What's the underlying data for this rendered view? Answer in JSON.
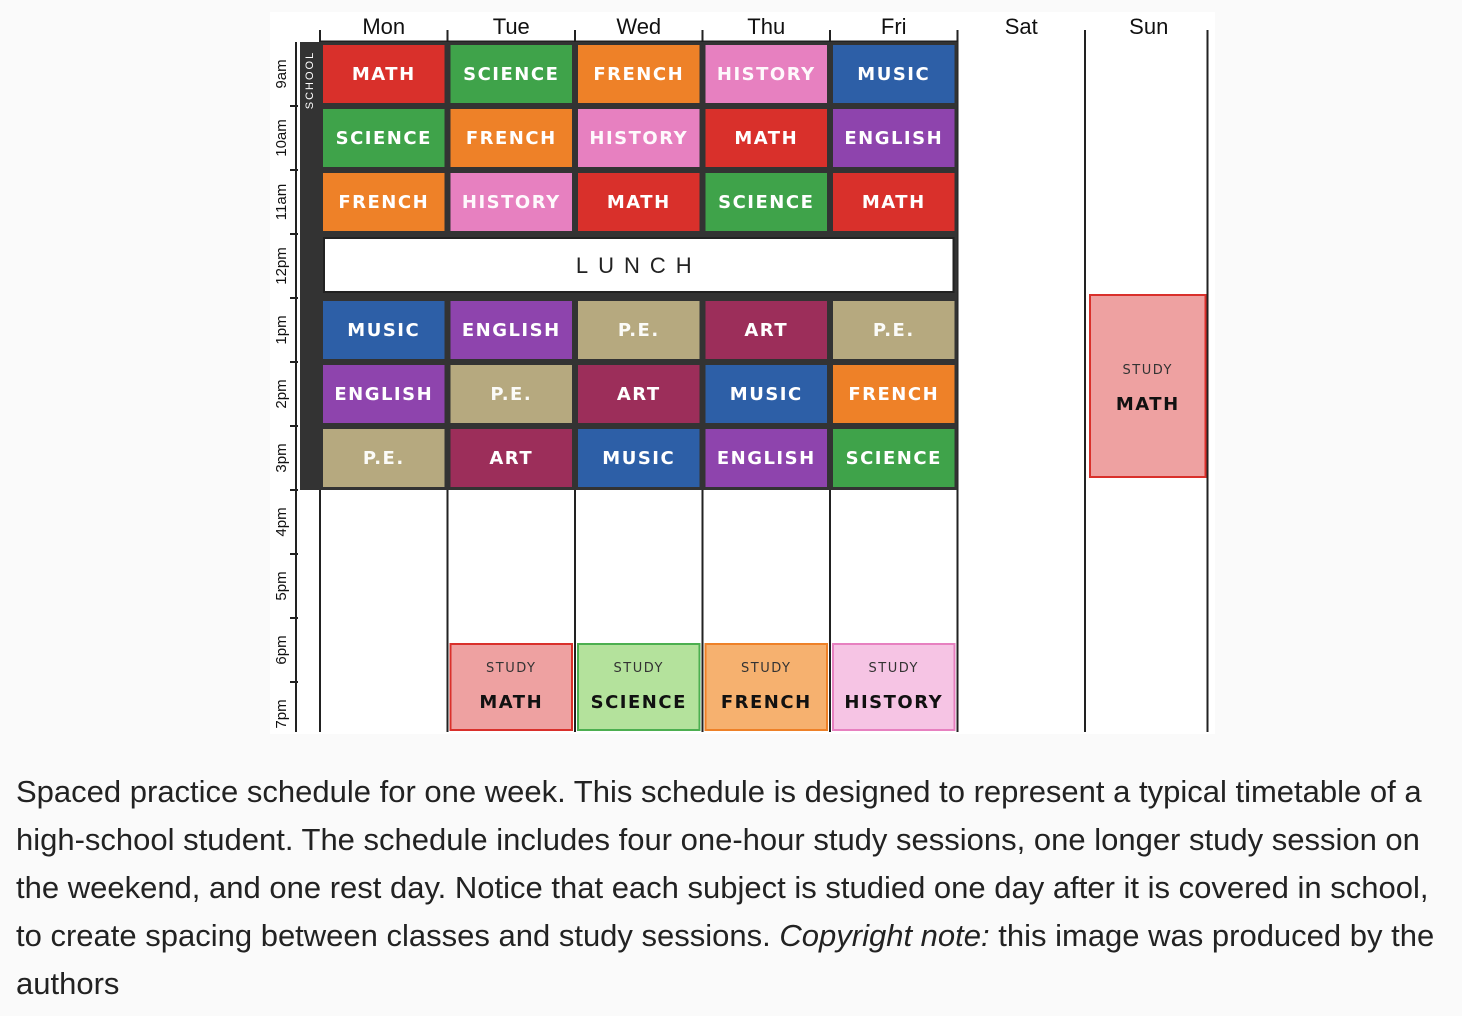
{
  "days": [
    "Mon",
    "Tue",
    "Wed",
    "Thu",
    "Fri",
    "Sat",
    "Sun"
  ],
  "hours": [
    "9am",
    "10am",
    "11am",
    "12pm",
    "1pm",
    "2pm",
    "3pm",
    "4pm",
    "5pm",
    "6pm",
    "7pm"
  ],
  "school_label": "SCHOOL",
  "lunch_label": "LUNCH",
  "study_prefix": "STUDY",
  "colors": {
    "MATH": "#d9302b",
    "SCIENCE": "#3fa34a",
    "FRENCH": "#ee8128",
    "HISTORY": "#e780c0",
    "MUSIC": "#2d5fa7",
    "ENGLISH": "#8e44ad",
    "ART": "#9c2e5a",
    "P.E.": "#b6a97f"
  },
  "study_colors": {
    "MATH": {
      "fill": "#eea1a1",
      "stroke": "#d9302b"
    },
    "SCIENCE": {
      "fill": "#b4e29c",
      "stroke": "#4caf50"
    },
    "FRENCH": {
      "fill": "#f6b16f",
      "stroke": "#ee8128"
    },
    "HISTORY": {
      "fill": "#f6c4e4",
      "stroke": "#e780c0"
    }
  },
  "schedule": {
    "Mon": [
      "MATH",
      "SCIENCE",
      "FRENCH",
      "MUSIC",
      "ENGLISH",
      "P.E."
    ],
    "Tue": [
      "SCIENCE",
      "FRENCH",
      "HISTORY",
      "ENGLISH",
      "P.E.",
      "ART"
    ],
    "Wed": [
      "FRENCH",
      "HISTORY",
      "MATH",
      "P.E.",
      "ART",
      "MUSIC"
    ],
    "Thu": [
      "HISTORY",
      "MATH",
      "SCIENCE",
      "ART",
      "MUSIC",
      "ENGLISH"
    ],
    "Fri": [
      "MUSIC",
      "ENGLISH",
      "MATH",
      "P.E.",
      "FRENCH",
      "SCIENCE"
    ]
  },
  "study_sessions": [
    {
      "day": "Tue",
      "subject": "MATH"
    },
    {
      "day": "Wed",
      "subject": "SCIENCE"
    },
    {
      "day": "Thu",
      "subject": "FRENCH"
    },
    {
      "day": "Fri",
      "subject": "HISTORY"
    },
    {
      "day": "Sun",
      "subject": "MATH"
    }
  ],
  "caption": {
    "main": "Spaced practice schedule for one week. This schedule is designed to represent a typical timetable of a high-school student. The schedule includes four one-hour study sessions, one longer study session on the weekend, and one rest day. Notice that each subject is studied one day after it is covered in school, to create spacing between classes and study sessions.",
    "note_label": "Copyright note:",
    "note_text": "this image was produced by the authors"
  }
}
